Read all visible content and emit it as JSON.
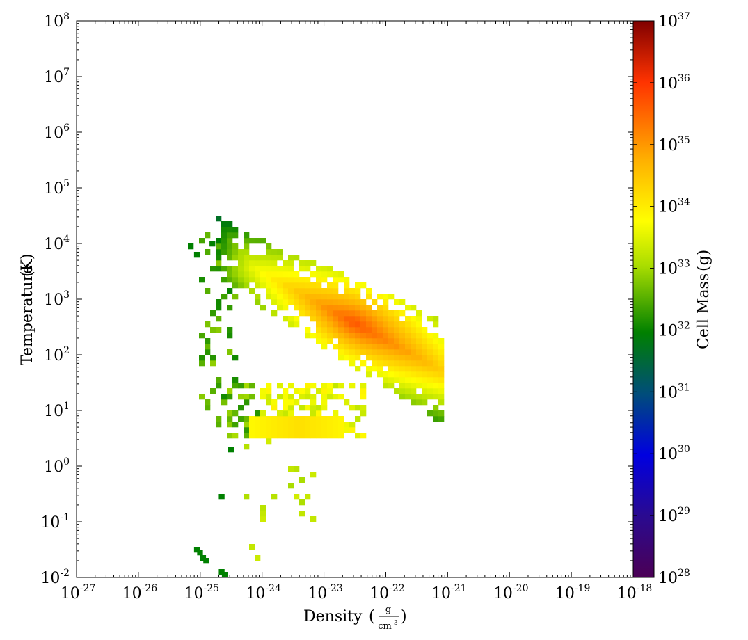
{
  "chart_data": {
    "type": "heatmap",
    "subtype": "2D phase plot (log-log), colored by cell mass",
    "xlabel": "Density",
    "xlabel_units": {
      "numerator": "g",
      "denominator": "cm",
      "denominator_exp": "3"
    },
    "ylabel": "Temperature",
    "ylabel_units": "K",
    "x_scale": "log",
    "y_scale": "log",
    "xlim": [
      1e-27,
      1e-18
    ],
    "ylim": [
      0.01,
      100000000.0
    ],
    "x_ticks": [
      {
        "base": "10",
        "exp": "-27"
      },
      {
        "base": "10",
        "exp": "-26"
      },
      {
        "base": "10",
        "exp": "-25"
      },
      {
        "base": "10",
        "exp": "-24"
      },
      {
        "base": "10",
        "exp": "-23"
      },
      {
        "base": "10",
        "exp": "-22"
      },
      {
        "base": "10",
        "exp": "-21"
      },
      {
        "base": "10",
        "exp": "-20"
      },
      {
        "base": "10",
        "exp": "-19"
      },
      {
        "base": "10",
        "exp": "-18"
      }
    ],
    "y_ticks": [
      {
        "base": "10",
        "exp": "-2"
      },
      {
        "base": "10",
        "exp": "-1"
      },
      {
        "base": "10",
        "exp": "0"
      },
      {
        "base": "10",
        "exp": "1"
      },
      {
        "base": "10",
        "exp": "2"
      },
      {
        "base": "10",
        "exp": "3"
      },
      {
        "base": "10",
        "exp": "4"
      },
      {
        "base": "10",
        "exp": "5"
      },
      {
        "base": "10",
        "exp": "6"
      },
      {
        "base": "10",
        "exp": "7"
      },
      {
        "base": "10",
        "exp": "8"
      }
    ],
    "colorbar": {
      "label": "Cell Mass",
      "units": "g",
      "scale": "log",
      "range": [
        1e+28,
        1e+37
      ],
      "colormap": "rainbow (purple-blue-green-yellow-orange-red-darkred)",
      "ticks": [
        {
          "base": "10",
          "exp": "28"
        },
        {
          "base": "10",
          "exp": "29"
        },
        {
          "base": "10",
          "exp": "30"
        },
        {
          "base": "10",
          "exp": "31"
        },
        {
          "base": "10",
          "exp": "32"
        },
        {
          "base": "10",
          "exp": "33"
        },
        {
          "base": "10",
          "exp": "34"
        },
        {
          "base": "10",
          "exp": "35"
        },
        {
          "base": "10",
          "exp": "36"
        },
        {
          "base": "10",
          "exp": "37"
        }
      ]
    },
    "blobs_description_note": "Approximate occupied regions as [log10 density, log10 temperature, log10 cell mass] samples",
    "regions": [
      {
        "x_range": [
          -24.5,
          -21.1
        ],
        "y_peak_at": [
          -22.5,
          2.6
        ],
        "log_mass_peak": 35.9
      },
      {
        "x_range": [
          -24.2,
          -22.6
        ],
        "y_range": [
          0.5,
          0.9
        ],
        "log_mass_peak": 34.2
      }
    ]
  }
}
